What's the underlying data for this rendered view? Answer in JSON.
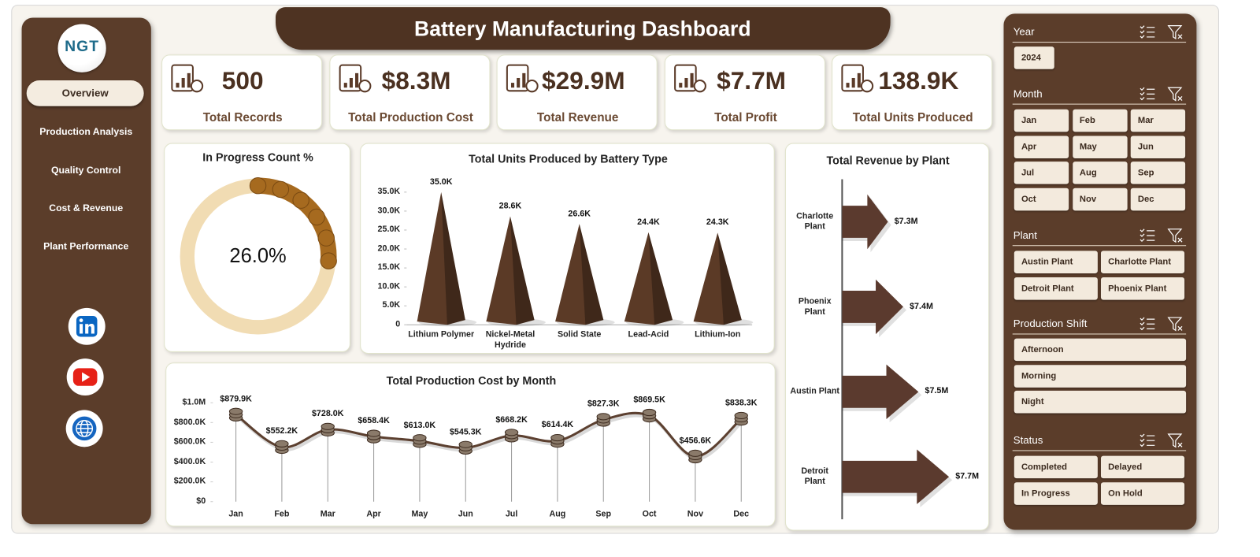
{
  "header": {
    "title": "Battery Manufacturing Dashboard"
  },
  "logo": {
    "text": "NGT"
  },
  "nav": [
    "Overview",
    "Production Analysis",
    "Quality Control",
    "Cost & Revenue",
    "Plant Performance"
  ],
  "kpis": [
    {
      "value": "500",
      "label": "Total Records"
    },
    {
      "value": "$8.3M",
      "label": "Total Production Cost"
    },
    {
      "value": "$29.9M",
      "label": "Total Revenue"
    },
    {
      "value": "$7.7M",
      "label": "Total Profit"
    },
    {
      "value": "138.9K",
      "label": "Total Units Produced"
    }
  ],
  "chart_data": [
    {
      "type": "donut",
      "title": "In Progress Count %",
      "values": [
        26.0
      ],
      "value_labels": [
        "26.0%"
      ],
      "color": "#a66a1f",
      "track_color": "#f1dcb3"
    },
    {
      "type": "bar",
      "title": "Total Units Produced by Battery Type",
      "categories": [
        "Lithium Polymer",
        "Nickel-Metal Hydride",
        "Solid State",
        "Lead-Acid",
        "Lithium-Ion"
      ],
      "values": [
        35000,
        28600,
        26600,
        24400,
        24300
      ],
      "value_labels": [
        "35.0K",
        "28.6K",
        "26.6K",
        "24.4K",
        "24.3K"
      ],
      "color": "#5b3a26",
      "ylim": [
        0,
        35000
      ],
      "yticks": [
        0,
        {
          "value": 5000,
          "label": "5.0K"
        },
        {
          "value": 10000,
          "label": "10.0K"
        },
        {
          "value": 15000,
          "label": "15.0K"
        },
        {
          "value": 20000,
          "label": "20.0K"
        },
        {
          "value": 25000,
          "label": "25.0K"
        },
        {
          "value": 30000,
          "label": "30.0K"
        },
        {
          "value": 35000,
          "label": "35.0K"
        }
      ]
    },
    {
      "type": "barh",
      "title": "Total Revenue by Plant",
      "categories": [
        "Charlotte Plant",
        "Phoenix Plant",
        "Austin Plant",
        "Detroit Plant"
      ],
      "values": [
        7.3,
        7.4,
        7.5,
        7.7
      ],
      "value_labels": [
        "$7.3M",
        "$7.4M",
        "$7.5M",
        "$7.7M"
      ],
      "color": "#5b3a2e",
      "xlim": [
        7,
        7.8
      ]
    },
    {
      "type": "line",
      "title": "Total Production Cost by Month",
      "categories": [
        "Jan",
        "Feb",
        "Mar",
        "Apr",
        "May",
        "Jun",
        "Jul",
        "Aug",
        "Sep",
        "Oct",
        "Nov",
        "Dec"
      ],
      "values": [
        879900,
        552200,
        728000,
        658400,
        613000,
        545300,
        668200,
        614400,
        827300,
        869500,
        456600,
        838300
      ],
      "value_labels": [
        "$879.9K",
        "$552.2K",
        "$728.0K",
        "$658.4K",
        "$613.0K",
        "$545.3K",
        "$668.2K",
        "$614.4K",
        "$827.3K",
        "$869.5K",
        "$456.6K",
        "$838.3K"
      ],
      "color": "#5c4030",
      "ylim": [
        0,
        1000000
      ],
      "yticks": [
        {
          "value": 0,
          "label": "$0"
        },
        {
          "value": 200000,
          "label": "$200.0K"
        },
        {
          "value": 400000,
          "label": "$400.0K"
        },
        {
          "value": 600000,
          "label": "$600.0K"
        },
        {
          "value": 800000,
          "label": "$800.0K"
        },
        {
          "value": 1000000,
          "label": "$1.0M"
        }
      ]
    }
  ],
  "slicers": [
    {
      "title": "Year",
      "items": [
        "2024"
      ]
    },
    {
      "title": "Month",
      "items": [
        "Jan",
        "Feb",
        "Mar",
        "Apr",
        "May",
        "Jun",
        "Jul",
        "Aug",
        "Sep",
        "Oct",
        "Nov",
        "Dec"
      ]
    },
    {
      "title": "Plant",
      "items": [
        "Austin Plant",
        "Charlotte Plant",
        "Detroit Plant",
        "Phoenix Plant"
      ]
    },
    {
      "title": "Production Shift",
      "items": [
        "Afternoon",
        "Morning",
        "Night"
      ]
    },
    {
      "title": "Status",
      "items": [
        "Completed",
        "Delayed",
        "In Progress",
        "On Hold"
      ]
    }
  ]
}
